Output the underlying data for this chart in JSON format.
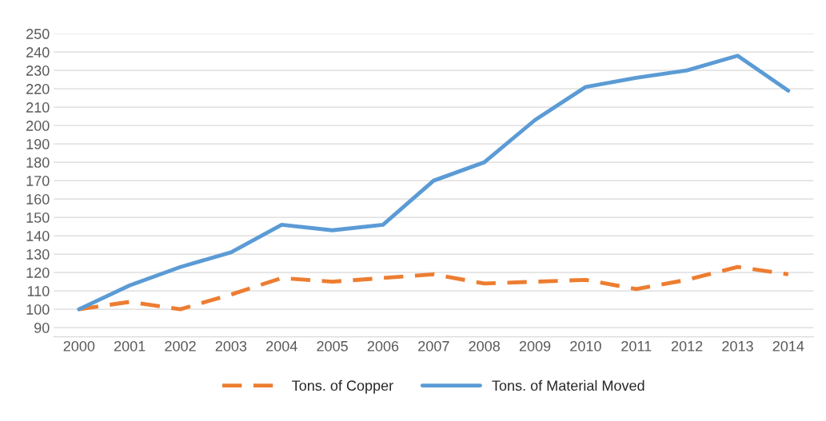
{
  "chart_data": {
    "type": "line",
    "categories": [
      "2000",
      "2001",
      "2002",
      "2003",
      "2004",
      "2005",
      "2006",
      "2007",
      "2008",
      "2009",
      "2010",
      "2011",
      "2012",
      "2013",
      "2014"
    ],
    "series": [
      {
        "name": "Tons. of Copper",
        "color": "#ed7d31",
        "line_style": "dashed",
        "values": [
          100,
          104,
          100,
          108,
          117,
          115,
          117,
          119,
          114,
          115,
          116,
          111,
          116,
          123,
          119
        ]
      },
      {
        "name": "Tons. of Material Moved",
        "color": "#5b9bd5",
        "line_style": "solid",
        "values": [
          100,
          113,
          123,
          131,
          146,
          143,
          146,
          170,
          180,
          203,
          221,
          226,
          230,
          238,
          219
        ]
      }
    ],
    "ylim": [
      85,
      250
    ],
    "yticks": [
      90,
      100,
      110,
      120,
      130,
      140,
      150,
      160,
      170,
      180,
      190,
      200,
      210,
      220,
      230,
      240,
      250
    ],
    "grid": "y",
    "legend": "bottom",
    "marker": "none"
  }
}
